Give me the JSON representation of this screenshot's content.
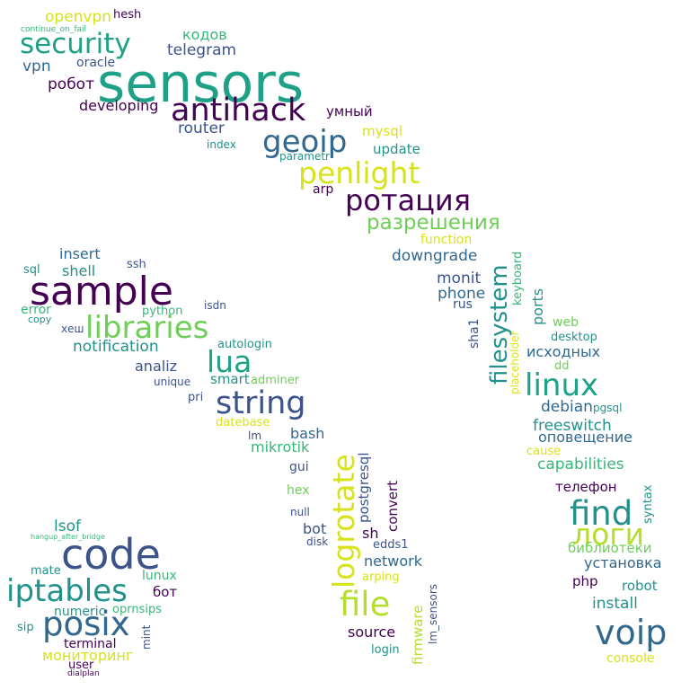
{
  "palette": {
    "dark_purple": "#440154",
    "indigo": "#3b528b",
    "slate_blue": "#31688e",
    "teal": "#21918c",
    "green_teal": "#1fa187",
    "sea_green": "#35b779",
    "light_green": "#6ece58",
    "lime": "#b5de2b",
    "yellow": "#d8e219"
  },
  "words": [
    {
      "text": "sensors",
      "color": "#1fa187"
    },
    {
      "text": "sample",
      "color": "#440154"
    },
    {
      "text": "code",
      "color": "#3b528b"
    },
    {
      "text": "antihack",
      "color": "#440154"
    },
    {
      "text": "security",
      "color": "#1fa187"
    },
    {
      "text": "geoip",
      "color": "#31688e"
    },
    {
      "text": "penlight",
      "color": "#d8e219"
    },
    {
      "text": "ротация",
      "color": "#440154"
    },
    {
      "text": "разрешения",
      "color": "#6ece58"
    },
    {
      "text": "libraries",
      "color": "#6ece58"
    },
    {
      "text": "lua",
      "color": "#1fa187"
    },
    {
      "text": "string",
      "color": "#3b528b"
    },
    {
      "text": "iptables",
      "color": "#21918c"
    },
    {
      "text": "posix",
      "color": "#31688e"
    },
    {
      "text": "linux",
      "color": "#1fa187"
    },
    {
      "text": "find",
      "color": "#21918c"
    },
    {
      "text": "логи",
      "color": "#b5de2b"
    },
    {
      "text": "voip",
      "color": "#31688e"
    },
    {
      "text": "file",
      "color": "#b5de2b"
    },
    {
      "text": "logrotate",
      "color": "#d8e219"
    },
    {
      "text": "filesystem",
      "color": "#21918c"
    },
    {
      "text": "openvpn",
      "color": "#d8e219"
    },
    {
      "text": "hesh",
      "color": "#440154"
    },
    {
      "text": "continue_on_fail",
      "color": "#35b779"
    },
    {
      "text": "кодов",
      "color": "#35b779"
    },
    {
      "text": "telegram",
      "color": "#3b528b"
    },
    {
      "text": "vpn",
      "color": "#31688e"
    },
    {
      "text": "oracle",
      "color": "#3b528b"
    },
    {
      "text": "робот",
      "color": "#440154"
    },
    {
      "text": "developing",
      "color": "#440154"
    },
    {
      "text": "умный",
      "color": "#440154"
    },
    {
      "text": "router",
      "color": "#3b528b"
    },
    {
      "text": "index",
      "color": "#21918c"
    },
    {
      "text": "mysql",
      "color": "#d8e219"
    },
    {
      "text": "update",
      "color": "#21918c"
    },
    {
      "text": "parametr",
      "color": "#21918c"
    },
    {
      "text": "arp",
      "color": "#440154"
    },
    {
      "text": "function",
      "color": "#d8e219"
    },
    {
      "text": "downgrade",
      "color": "#31688e"
    },
    {
      "text": "monit",
      "color": "#3b528b"
    },
    {
      "text": "phone",
      "color": "#31688e"
    },
    {
      "text": "rus",
      "color": "#3b528b"
    },
    {
      "text": "keyboard",
      "color": "#35b779"
    },
    {
      "text": "ports",
      "color": "#21918c"
    },
    {
      "text": "sha1",
      "color": "#3b528b"
    },
    {
      "text": "placeholder",
      "color": "#d8e219"
    },
    {
      "text": "web",
      "color": "#6ece58"
    },
    {
      "text": "desktop",
      "color": "#21918c"
    },
    {
      "text": "исходных",
      "color": "#31688e"
    },
    {
      "text": "dd",
      "color": "#6ece58"
    },
    {
      "text": "debian",
      "color": "#31688e"
    },
    {
      "text": "pgsql",
      "color": "#21918c"
    },
    {
      "text": "freeswitch",
      "color": "#21918c"
    },
    {
      "text": "оповещение",
      "color": "#31688e"
    },
    {
      "text": "cause",
      "color": "#d8e219"
    },
    {
      "text": "capabilities",
      "color": "#35b779"
    },
    {
      "text": "телефон",
      "color": "#440154"
    },
    {
      "text": "syntax",
      "color": "#21918c"
    },
    {
      "text": "библиотеки",
      "color": "#6ece58"
    },
    {
      "text": "установка",
      "color": "#31688e"
    },
    {
      "text": "php",
      "color": "#440154"
    },
    {
      "text": "robot",
      "color": "#21918c"
    },
    {
      "text": "install",
      "color": "#21918c"
    },
    {
      "text": "console",
      "color": "#d8e219"
    },
    {
      "text": "insert",
      "color": "#31688e"
    },
    {
      "text": "ssh",
      "color": "#3b528b"
    },
    {
      "text": "sql",
      "color": "#21918c"
    },
    {
      "text": "shell",
      "color": "#21918c"
    },
    {
      "text": "error",
      "color": "#35b779"
    },
    {
      "text": "copy",
      "color": "#21918c"
    },
    {
      "text": "хеш",
      "color": "#3b528b"
    },
    {
      "text": "python",
      "color": "#35b779"
    },
    {
      "text": "isdn",
      "color": "#3b528b"
    },
    {
      "text": "notification",
      "color": "#21918c"
    },
    {
      "text": "autologin",
      "color": "#21918c"
    },
    {
      "text": "analiz",
      "color": "#3b528b"
    },
    {
      "text": "smart",
      "color": "#21918c"
    },
    {
      "text": "adminer",
      "color": "#6ece58"
    },
    {
      "text": "unique",
      "color": "#3b528b"
    },
    {
      "text": "pri",
      "color": "#3b528b"
    },
    {
      "text": "datebase",
      "color": "#d8e219"
    },
    {
      "text": "lm",
      "color": "#3b528b"
    },
    {
      "text": "bash",
      "color": "#31688e"
    },
    {
      "text": "mikrotik",
      "color": "#35b779"
    },
    {
      "text": "gui",
      "color": "#3b528b"
    },
    {
      "text": "hex",
      "color": "#6ece58"
    },
    {
      "text": "null",
      "color": "#3b528b"
    },
    {
      "text": "bot",
      "color": "#3b528b"
    },
    {
      "text": "disk",
      "color": "#3b528b"
    },
    {
      "text": "postgresql",
      "color": "#3b528b"
    },
    {
      "text": "convert",
      "color": "#440154"
    },
    {
      "text": "sh",
      "color": "#440154"
    },
    {
      "text": "edds1",
      "color": "#3b528b"
    },
    {
      "text": "network",
      "color": "#31688e"
    },
    {
      "text": "arping",
      "color": "#d8e219"
    },
    {
      "text": "firmware",
      "color": "#b5de2b"
    },
    {
      "text": "lm_sensors",
      "color": "#3b528b"
    },
    {
      "text": "source",
      "color": "#440154"
    },
    {
      "text": "login",
      "color": "#21918c"
    },
    {
      "text": "lsof",
      "color": "#21918c"
    },
    {
      "text": "hangup_after_bridge",
      "color": "#35b779"
    },
    {
      "text": "mate",
      "color": "#21918c"
    },
    {
      "text": "lunux",
      "color": "#35b779"
    },
    {
      "text": "бот",
      "color": "#440154"
    },
    {
      "text": "numeric",
      "color": "#21918c"
    },
    {
      "text": "oprnsips",
      "color": "#35b779"
    },
    {
      "text": "sip",
      "color": "#21918c"
    },
    {
      "text": "terminal",
      "color": "#440154"
    },
    {
      "text": "mint",
      "color": "#3b528b"
    },
    {
      "text": "мониторинг",
      "color": "#d8e219"
    },
    {
      "text": "user",
      "color": "#440154"
    },
    {
      "text": "dialplan",
      "color": "#440154"
    }
  ]
}
